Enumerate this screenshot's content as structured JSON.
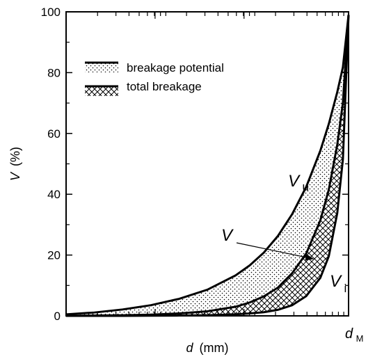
{
  "chart_data": {
    "type": "line",
    "title": "",
    "xlabel": {
      "var": "d",
      "unit": "(mm)"
    },
    "ylabel": {
      "var": "V",
      "unit": "(%)"
    },
    "ylim": [
      0,
      100
    ],
    "yticks": [
      "0",
      "20",
      "40",
      "60",
      "80",
      "100"
    ],
    "xtick_end": {
      "var": "d",
      "sub": "M"
    },
    "grid": false,
    "legend": {
      "placement": "top-left",
      "items": [
        {
          "label": "breakage potential",
          "pattern": "dots"
        },
        {
          "label": "total breakage",
          "pattern": "crosshatch"
        }
      ]
    },
    "x_normalized": [
      0,
      0.1,
      0.2,
      0.3,
      0.4,
      0.5,
      0.6,
      0.65,
      0.7,
      0.75,
      0.8,
      0.85,
      0.9,
      0.93,
      0.96,
      0.98,
      1.0
    ],
    "series": [
      {
        "name": {
          "var": "V",
          "sub": "u"
        },
        "values": [
          0.5,
          1.1,
          2.1,
          3.5,
          5.6,
          8.6,
          13.3,
          16.6,
          20.8,
          26.3,
          33.4,
          42.4,
          54.3,
          63.1,
          73.6,
          81.8,
          99.0
        ]
      },
      {
        "name": {
          "var": "V",
          "sub": ""
        },
        "values": [
          0,
          0.1,
          0.2,
          0.4,
          0.8,
          1.5,
          3.0,
          4.4,
          6.4,
          9.3,
          14.0,
          20.5,
          31.4,
          41.5,
          56.3,
          70.1,
          99.0
        ]
      },
      {
        "name": {
          "var": "V",
          "sub": "i"
        },
        "values": [
          0,
          0,
          0,
          0.05,
          0.1,
          0.2,
          0.5,
          0.8,
          1.2,
          2.0,
          3.5,
          6.5,
          12.5,
          19.6,
          33.8,
          51.5,
          99.0
        ]
      }
    ],
    "annotations": [
      {
        "target": "V",
        "arrow": true
      }
    ]
  }
}
